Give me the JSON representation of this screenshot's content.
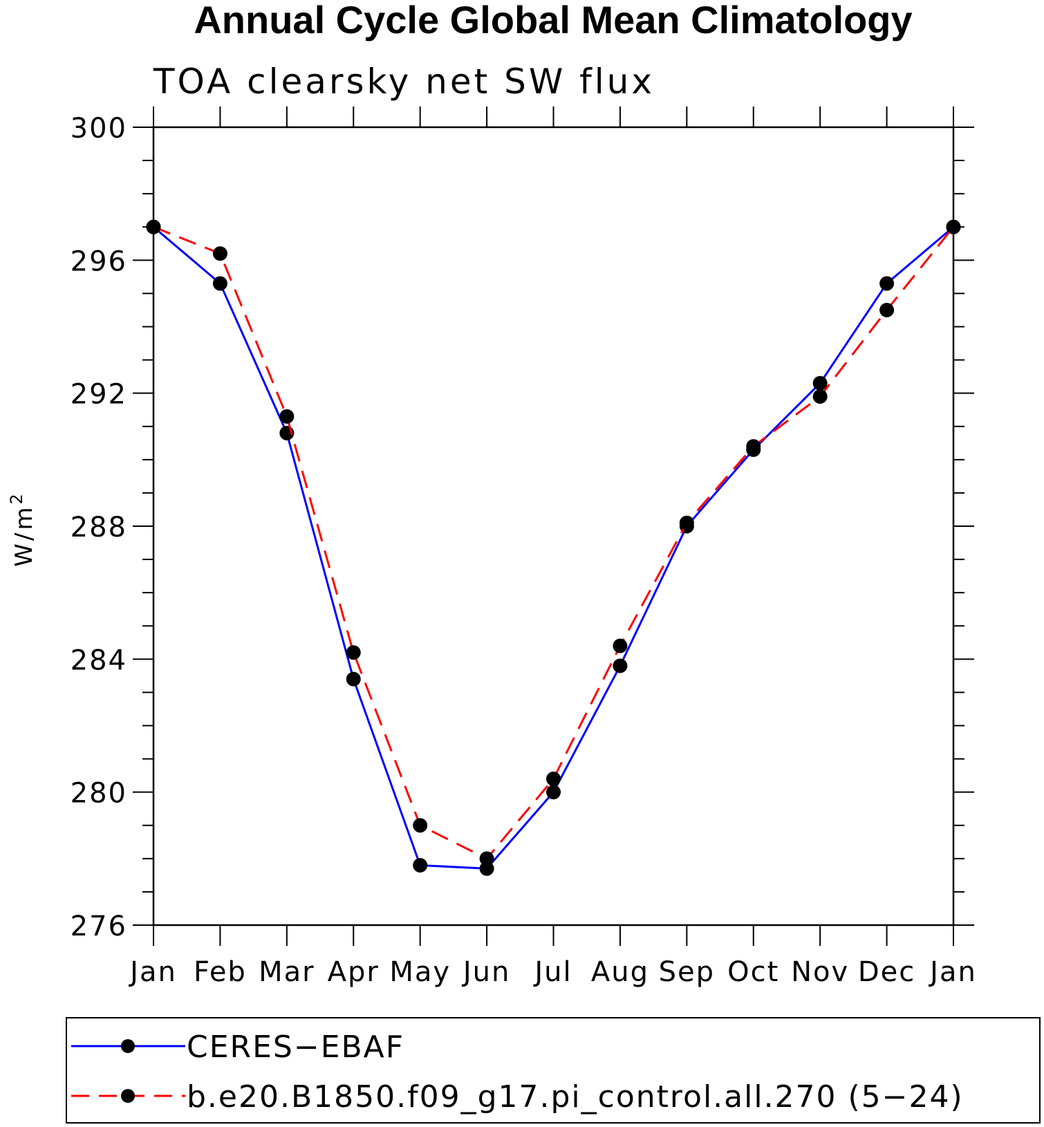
{
  "chart_data": {
    "type": "line",
    "title": "Annual Cycle Global Mean Climatology",
    "subtitle": "TOA clearsky net SW flux",
    "ylabel": "W/m",
    "ylabel_sup": "2",
    "ylim": [
      276,
      300
    ],
    "yticks": [
      "300",
      "296",
      "292",
      "288",
      "284",
      "280",
      "276"
    ],
    "categories": [
      "Jan",
      "Feb",
      "Mar",
      "Apr",
      "May",
      "Jun",
      "Jul",
      "Aug",
      "Sep",
      "Oct",
      "Nov",
      "Dec",
      "Jan"
    ],
    "series": [
      {
        "name": "CERES−EBAF",
        "color": "#0000ff",
        "dash": "solid",
        "values": [
          297.0,
          295.3,
          290.8,
          283.4,
          277.8,
          277.7,
          280.0,
          283.8,
          288.0,
          290.3,
          292.3,
          295.3,
          297.0
        ]
      },
      {
        "name": "b.e20.B1850.f09_g17.pi_control.all.270 (5−24)",
        "color": "#ff0000",
        "dash": "dashed",
        "values": [
          297.0,
          296.2,
          291.3,
          284.2,
          279.0,
          278.0,
          280.4,
          284.4,
          288.1,
          290.4,
          291.9,
          294.5,
          297.0
        ]
      }
    ]
  }
}
